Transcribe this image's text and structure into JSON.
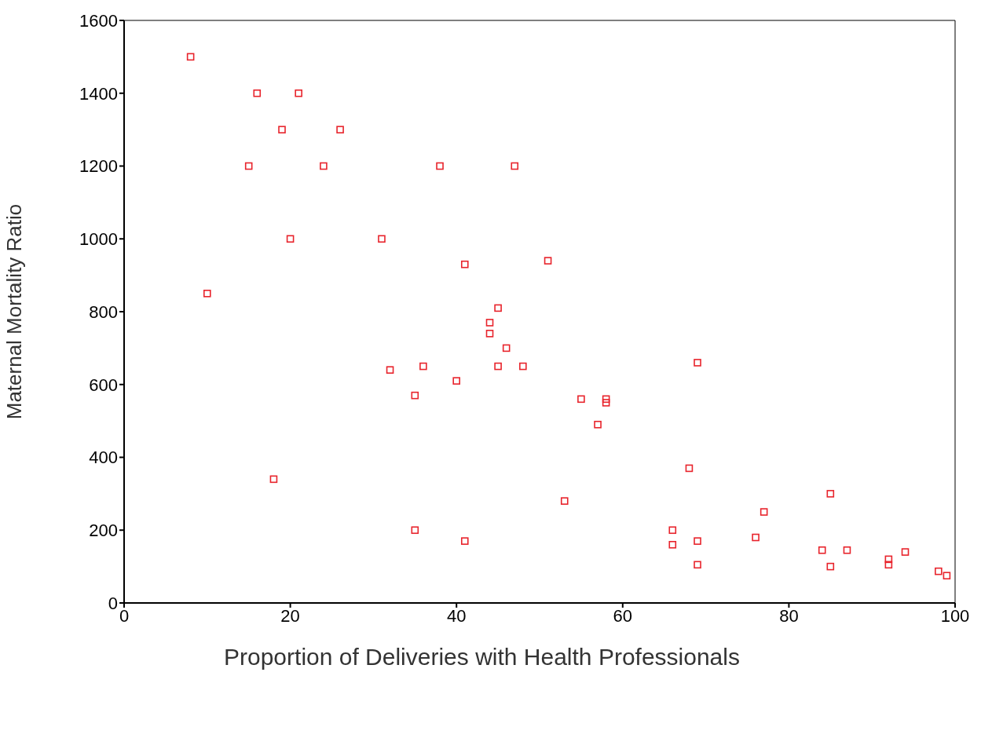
{
  "chart_data": {
    "type": "scatter",
    "xlabel": "Proportion of Deliveries with Health Professionals",
    "ylabel": "Maternal Mortality Ratio",
    "x": [
      8,
      16,
      21,
      19,
      26,
      15,
      24,
      38,
      47,
      20,
      31,
      41,
      51,
      10,
      45,
      44,
      44,
      46,
      45,
      48,
      36,
      32,
      40,
      35,
      69,
      55,
      58,
      58,
      57,
      68,
      18,
      53,
      85,
      77,
      76,
      35,
      41,
      66,
      66,
      69,
      69,
      84,
      87,
      85,
      92,
      92,
      94,
      98,
      99
    ],
    "series": [
      {
        "color": "#e8242c",
        "values": [
          1500,
          1400,
          1400,
          1300,
          1300,
          1200,
          1200,
          1200,
          1200,
          1000,
          1000,
          930,
          940,
          850,
          810,
          770,
          740,
          700,
          650,
          650,
          650,
          640,
          610,
          570,
          660,
          560,
          560,
          550,
          490,
          370,
          340,
          280,
          300,
          250,
          180,
          200,
          170,
          200,
          160,
          170,
          105,
          145,
          145,
          100,
          120,
          105,
          140,
          87,
          75
        ]
      }
    ],
    "xlim": [
      0,
      100
    ],
    "xticks": [
      0,
      20,
      40,
      60,
      80,
      100
    ],
    "ylim": [
      0,
      1600
    ],
    "yticks": [
      0,
      200,
      400,
      600,
      800,
      1000,
      1200,
      1400,
      1600
    ],
    "grid": false,
    "marker": "square"
  }
}
